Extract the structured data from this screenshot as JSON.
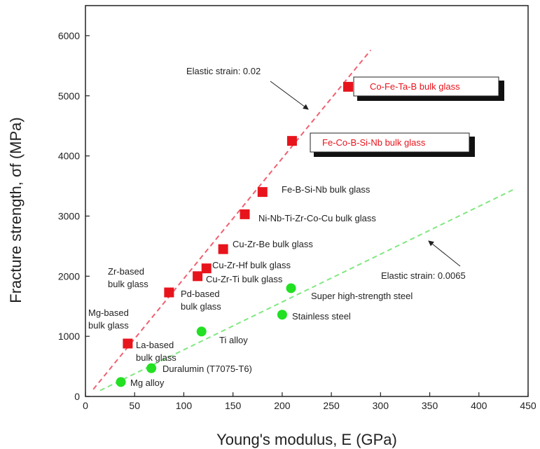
{
  "chart_data": {
    "type": "scatter",
    "xlabel": "Young's modulus, E (GPa)",
    "ylabel": "Fracture strength, σf (MPa)",
    "xlim": [
      0,
      450
    ],
    "ylim": [
      0,
      6500
    ],
    "xticks": [
      0,
      50,
      100,
      150,
      200,
      250,
      300,
      350,
      400,
      450
    ],
    "yticks": [
      0,
      1000,
      2000,
      3000,
      4000,
      5000,
      6000
    ],
    "grid": false,
    "legend": "none",
    "series": [
      {
        "marker": "square",
        "color": "#e8141c",
        "points": [
          {
            "x": 43,
            "y": 880
          },
          {
            "x": 85,
            "y": 1730
          },
          {
            "x": 114,
            "y": 2000
          },
          {
            "x": 123,
            "y": 2130
          },
          {
            "x": 140,
            "y": 2450
          },
          {
            "x": 162,
            "y": 3030
          },
          {
            "x": 180,
            "y": 3400
          },
          {
            "x": 210,
            "y": 4250
          },
          {
            "x": 267,
            "y": 5150
          }
        ]
      },
      {
        "marker": "circle",
        "color": "#22e022",
        "points": [
          {
            "x": 36,
            "y": 240
          },
          {
            "x": 67,
            "y": 470
          },
          {
            "x": 118,
            "y": 1080
          },
          {
            "x": 200,
            "y": 1360
          },
          {
            "x": 209,
            "y": 1800
          }
        ]
      }
    ],
    "lines": [
      {
        "label": "Elastic strain: 0.02",
        "color": "#f06070",
        "x": [
          8,
          290
        ],
        "y": [
          120,
          5760
        ]
      },
      {
        "label": "Elastic strain: 0.0065",
        "color": "#80e880",
        "x": [
          15,
          435
        ],
        "y": [
          100,
          3440
        ]
      }
    ],
    "annotations": [
      {
        "text": "Mg-based",
        "color": "#222"
      },
      {
        "text": "bulk glass",
        "color": "#222"
      },
      {
        "text": "La-based",
        "color": "#222"
      },
      {
        "text": "bulk glass",
        "color": "#222"
      },
      {
        "text": "Zr-based",
        "color": "#222"
      },
      {
        "text": "bulk glass",
        "color": "#222"
      },
      {
        "text": "Pd-based",
        "color": "#222"
      },
      {
        "text": "bulk glass",
        "color": "#222"
      },
      {
        "text": "Cu-Zr-Ti bulk glass",
        "color": "#222"
      },
      {
        "text": "Cu-Zr-Hf bulk glass",
        "color": "#222"
      },
      {
        "text": "Cu-Zr-Be bulk glass",
        "color": "#222"
      },
      {
        "text": "Ni-Nb-Ti-Zr-Co-Cu bulk glass",
        "color": "#222"
      },
      {
        "text": "Fe-B-Si-Nb bulk glass",
        "color": "#222"
      },
      {
        "text": "Fe-Co-B-Si-Nb bulk glass",
        "color": "#e8141c",
        "boxed": true
      },
      {
        "text": "Co-Fe-Ta-B bulk glass",
        "color": "#e8141c",
        "boxed": true
      },
      {
        "text": "Elastic strain: 0.02",
        "color": "#222"
      },
      {
        "text": "Elastic strain: 0.0065",
        "color": "#222"
      },
      {
        "text": "Super high-strength steel",
        "color": "#222"
      },
      {
        "text": "Stainless steel",
        "color": "#222"
      },
      {
        "text": "Ti alloy",
        "color": "#222"
      },
      {
        "text": "Duralumin (T7075-T6)",
        "color": "#222"
      },
      {
        "text": "Mg alloy",
        "color": "#222"
      }
    ]
  }
}
